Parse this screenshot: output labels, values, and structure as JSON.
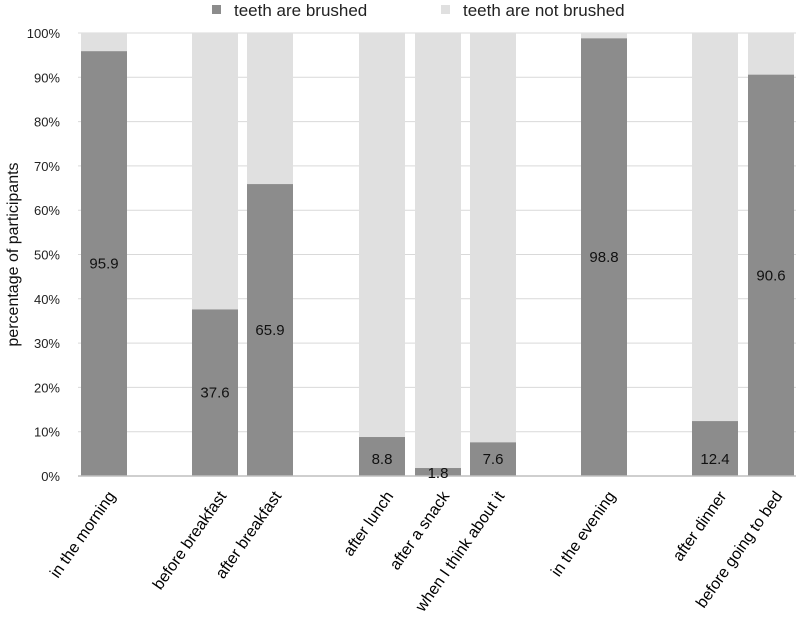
{
  "chart_data": {
    "type": "bar",
    "stacked": true,
    "categories": [
      "in the morning",
      "before breakfast",
      "after breakfast",
      "after lunch",
      "after a snack",
      "when I think about it",
      "in the evening",
      "after dinner",
      "before going to bed"
    ],
    "series": [
      {
        "name": "teeth are brushed",
        "values": [
          95.9,
          37.6,
          65.9,
          8.8,
          1.8,
          7.6,
          98.8,
          12.4,
          90.6
        ],
        "color": "#8c8c8c"
      },
      {
        "name": "teeth are not brushed",
        "values": [
          4.1,
          62.4,
          34.1,
          91.2,
          98.2,
          92.4,
          1.2,
          87.6,
          9.4
        ],
        "color": "#e0e0e0"
      }
    ],
    "data_labels": [
      "95.9",
      "37.6",
      "65.9",
      "8.8",
      "1.8",
      "7.6",
      "98.8",
      "12.4",
      "90.6"
    ],
    "ylabel": "percentage of participants",
    "xlabel": "",
    "ylim": [
      0,
      100
    ],
    "yticks": [
      "0%",
      "10%",
      "20%",
      "30%",
      "40%",
      "50%",
      "60%",
      "70%",
      "80%",
      "90%",
      "100%"
    ],
    "legend_position": "top",
    "grid": true,
    "grid_color": "#d9d9d9",
    "axis_color": "#bfbfbf"
  }
}
